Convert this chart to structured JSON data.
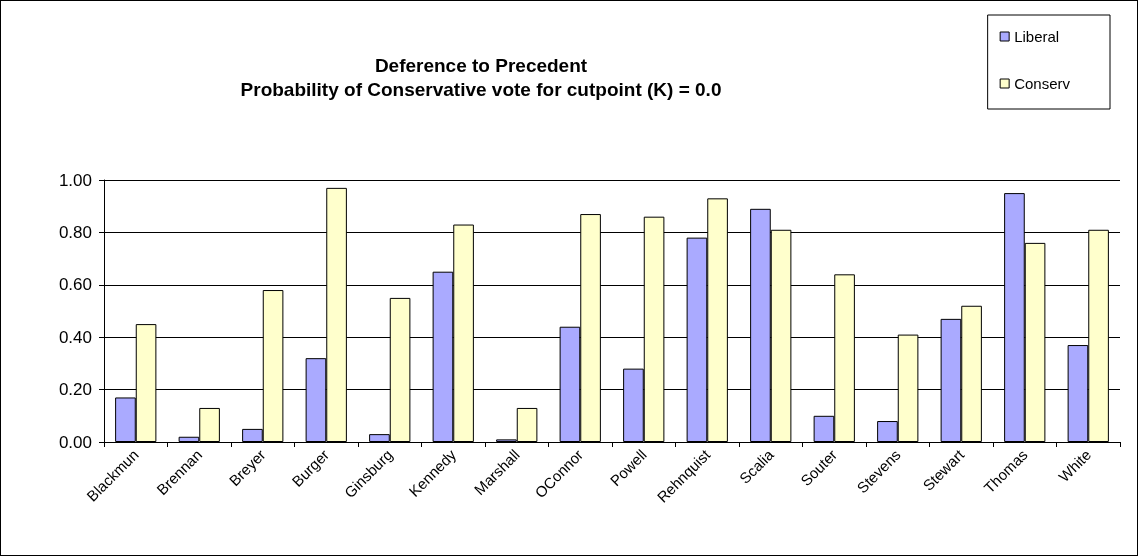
{
  "chart_data": {
    "type": "bar",
    "title": "Deference to Precedent",
    "subtitle": "Probability of Conservative vote for cutpoint (K) = 0.0",
    "categories": [
      "Blackmun",
      "Brennan",
      "Breyer",
      "Burger",
      "Ginsburg",
      "Kennedy",
      "Marshall",
      "OConnor",
      "Powell",
      "Rehnquist",
      "Scalia",
      "Souter",
      "Stevens",
      "Stewart",
      "Thomas",
      "White"
    ],
    "series": [
      {
        "name": "Liberal",
        "color": "#aaaaff",
        "values": [
          0.17,
          0.02,
          0.05,
          0.32,
          0.03,
          0.65,
          0.01,
          0.44,
          0.28,
          0.78,
          0.89,
          0.1,
          0.08,
          0.47,
          0.95,
          0.37
        ]
      },
      {
        "name": "Conserv",
        "color": "#ffffcc",
        "values": [
          0.45,
          0.13,
          0.58,
          0.97,
          0.55,
          0.83,
          0.13,
          0.87,
          0.86,
          0.93,
          0.81,
          0.64,
          0.41,
          0.52,
          0.76,
          0.81
        ]
      }
    ],
    "ylim": [
      0,
      1
    ],
    "yticks": [
      {
        "value": 0,
        "label": "0.00"
      },
      {
        "value": 0.2,
        "label": "0.20"
      },
      {
        "value": 0.4,
        "label": "0.40"
      },
      {
        "value": 0.6,
        "label": "0.60"
      },
      {
        "value": 0.8,
        "label": "0.80"
      },
      {
        "value": 1,
        "label": "1.00"
      }
    ],
    "grid": "y",
    "legend": "top right"
  }
}
